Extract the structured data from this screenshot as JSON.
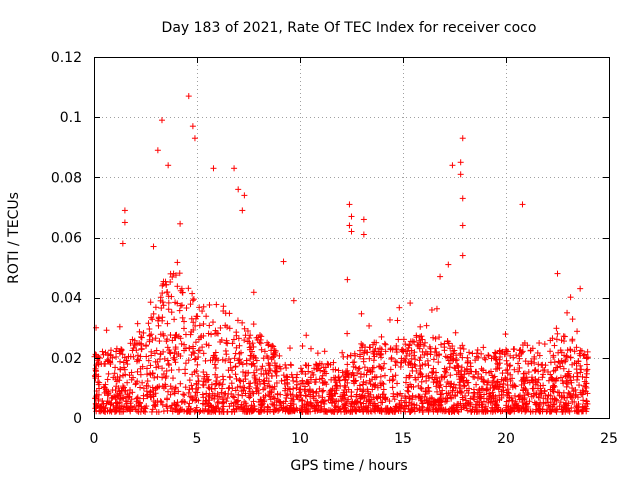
{
  "chart_data": {
    "type": "scatter",
    "title": "Day 183 of 2021, Rate Of TEC Index for receiver coco",
    "xlabel": "GPS time / hours",
    "ylabel": "ROTI / TECUs",
    "xlim": [
      0,
      25
    ],
    "ylim": [
      0,
      0.12
    ],
    "xticks": [
      0,
      5,
      10,
      15,
      20,
      25
    ],
    "yticks": [
      0,
      0.02,
      0.04,
      0.06,
      0.08,
      0.1,
      0.12
    ],
    "xtick_labels": [
      "0",
      "5",
      "10",
      "15",
      "20",
      "25"
    ],
    "ytick_labels": [
      "0",
      "0.02",
      "0.04",
      "0.06",
      "0.08",
      "0.1",
      "0.12"
    ],
    "grid": true,
    "marker": "+",
    "color": "#ff0000",
    "series": [
      {
        "name": "ROTI",
        "notable_points": [
          {
            "x": 4.6,
            "y": 0.107
          },
          {
            "x": 3.3,
            "y": 0.099
          },
          {
            "x": 4.8,
            "y": 0.097
          },
          {
            "x": 4.9,
            "y": 0.093
          },
          {
            "x": 17.9,
            "y": 0.093
          },
          {
            "x": 3.1,
            "y": 0.089
          },
          {
            "x": 17.8,
            "y": 0.085
          },
          {
            "x": 17.4,
            "y": 0.084
          },
          {
            "x": 3.6,
            "y": 0.084
          },
          {
            "x": 6.8,
            "y": 0.083
          },
          {
            "x": 5.8,
            "y": 0.083
          },
          {
            "x": 17.8,
            "y": 0.081
          },
          {
            "x": 7.0,
            "y": 0.076
          },
          {
            "x": 7.3,
            "y": 0.074
          },
          {
            "x": 17.9,
            "y": 0.073
          },
          {
            "x": 20.8,
            "y": 0.071
          },
          {
            "x": 12.4,
            "y": 0.071
          },
          {
            "x": 1.5,
            "y": 0.069
          },
          {
            "x": 7.2,
            "y": 0.069
          },
          {
            "x": 12.5,
            "y": 0.067
          },
          {
            "x": 13.1,
            "y": 0.066
          },
          {
            "x": 1.5,
            "y": 0.065
          },
          {
            "x": 12.4,
            "y": 0.064
          },
          {
            "x": 17.9,
            "y": 0.064
          },
          {
            "x": 12.5,
            "y": 0.062
          },
          {
            "x": 13.1,
            "y": 0.061
          },
          {
            "x": 1.4,
            "y": 0.058
          },
          {
            "x": 17.9,
            "y": 0.054
          },
          {
            "x": 9.2,
            "y": 0.052
          },
          {
            "x": 17.2,
            "y": 0.051
          },
          {
            "x": 16.8,
            "y": 0.047
          },
          {
            "x": 22.5,
            "y": 0.048
          },
          {
            "x": 12.3,
            "y": 0.046
          },
          {
            "x": 23.6,
            "y": 0.043
          },
          {
            "x": 9.7,
            "y": 0.039
          },
          {
            "x": 0.1,
            "y": 0.03
          }
        ]
      }
    ]
  }
}
